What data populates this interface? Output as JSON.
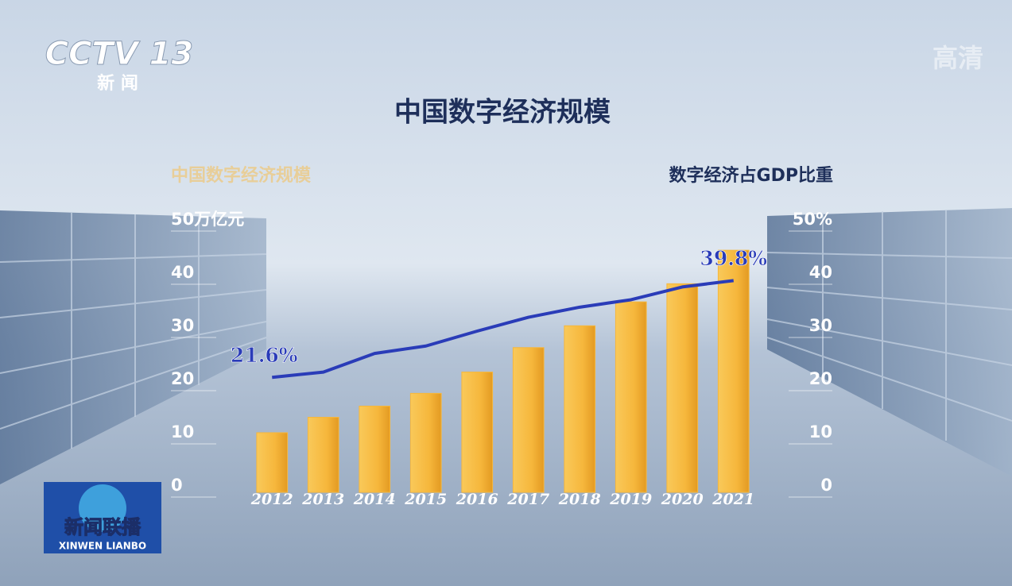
{
  "logo": {
    "channel": "CCTV 13",
    "sub": "新 闻",
    "quality": "高清",
    "program": "新闻联播",
    "program_en": "XINWEN LIANBO"
  },
  "chart_data": {
    "type": "bar",
    "title": "中国数字经济规模",
    "categories": [
      "2012",
      "2013",
      "2014",
      "2015",
      "2016",
      "2017",
      "2018",
      "2019",
      "2020",
      "2021"
    ],
    "series": [
      {
        "name": "中国数字经济规模",
        "color": "#f6b73c",
        "values": [
          11.2,
          14.1,
          16.2,
          18.6,
          22.6,
          27.2,
          31.3,
          35.8,
          39.2,
          45.5
        ]
      },
      {
        "name": "数字经济占GDP比重",
        "type": "line",
        "axis": "y2",
        "color": "#2a3cb8",
        "values": [
          21.6,
          22.6,
          26.1,
          27.5,
          30.3,
          32.9,
          34.8,
          36.2,
          38.6,
          39.8
        ],
        "value_labels": [
          "21.6%",
          null,
          null,
          null,
          null,
          null,
          null,
          null,
          null,
          "39.8%"
        ]
      }
    ],
    "ylim": [
      0,
      50
    ],
    "yticks": [
      0,
      10,
      20,
      30,
      40,
      {
        "value": 50,
        "label": "50万亿元"
      }
    ],
    "y2lim": [
      0,
      50
    ],
    "y2ticks": [
      0,
      10,
      20,
      30,
      40,
      {
        "value": 50,
        "label": "50%"
      }
    ]
  }
}
